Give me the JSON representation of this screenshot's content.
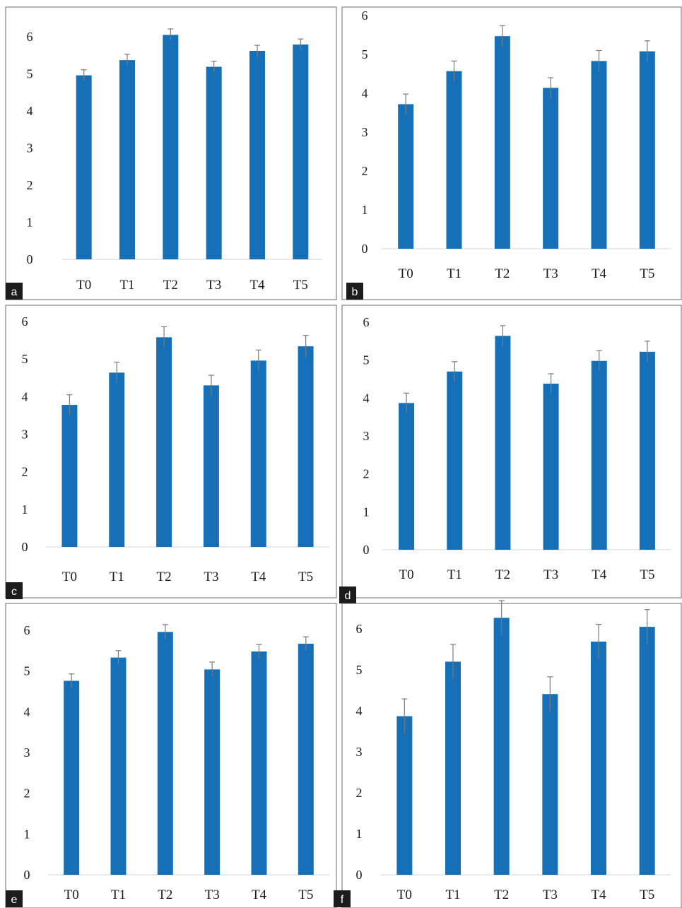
{
  "chart_data": [
    {
      "panel": "a",
      "type": "bar",
      "categories": [
        "T0",
        "T1",
        "T2",
        "T3",
        "T4",
        "T5"
      ],
      "values": [
        4.96,
        5.37,
        6.05,
        5.19,
        5.62,
        5.79
      ],
      "errors": [
        0.15,
        0.16,
        0.16,
        0.15,
        0.15,
        0.15
      ],
      "y_ticks": [
        "0",
        "1",
        "2",
        "3",
        "4",
        "5",
        "6"
      ],
      "ylim": [
        0,
        6.4
      ]
    },
    {
      "panel": "b",
      "type": "bar",
      "categories": [
        "T0",
        "T1",
        "T2",
        "T3",
        "T4",
        "T5"
      ],
      "values": [
        3.72,
        4.57,
        5.47,
        4.14,
        4.83,
        5.08
      ],
      "errors": [
        0.26,
        0.26,
        0.27,
        0.26,
        0.27,
        0.27
      ],
      "y_ticks": [
        "0",
        "1",
        "2",
        "3",
        "4",
        "5",
        "6"
      ],
      "ylim": [
        0,
        6.1
      ]
    },
    {
      "panel": "c",
      "type": "bar",
      "categories": [
        "T0",
        "T1",
        "T2",
        "T3",
        "T4",
        "T5"
      ],
      "values": [
        3.78,
        4.64,
        5.58,
        4.3,
        4.96,
        5.34
      ],
      "errors": [
        0.27,
        0.28,
        0.28,
        0.27,
        0.28,
        0.29
      ],
      "y_ticks": [
        "0",
        "1",
        "2",
        "3",
        "4",
        "5",
        "6"
      ],
      "ylim": [
        0,
        6.1
      ]
    },
    {
      "panel": "d",
      "type": "bar",
      "categories": [
        "T0",
        "T1",
        "T2",
        "T3",
        "T4",
        "T5"
      ],
      "values": [
        3.87,
        4.7,
        5.64,
        4.38,
        4.98,
        5.22
      ],
      "errors": [
        0.26,
        0.26,
        0.27,
        0.26,
        0.27,
        0.28
      ],
      "y_ticks": [
        "0",
        "1",
        "2",
        "3",
        "4",
        "5",
        "6"
      ],
      "ylim": [
        0,
        6.1
      ]
    },
    {
      "panel": "e",
      "type": "bar",
      "categories": [
        "T0",
        "T1",
        "T2",
        "T3",
        "T4",
        "T5"
      ],
      "values": [
        4.76,
        5.33,
        5.96,
        5.04,
        5.48,
        5.67
      ],
      "errors": [
        0.17,
        0.17,
        0.18,
        0.18,
        0.17,
        0.17
      ],
      "y_ticks": [
        "0",
        "1",
        "2",
        "3",
        "4",
        "5",
        "6"
      ],
      "ylim": [
        0,
        6.3
      ]
    },
    {
      "panel": "f",
      "type": "bar",
      "categories": [
        "T0",
        "T1",
        "T2",
        "T3",
        "T4",
        "T5"
      ],
      "values": [
        3.87,
        5.2,
        6.27,
        4.41,
        5.69,
        6.05
      ],
      "errors": [
        0.42,
        0.42,
        0.42,
        0.42,
        0.42,
        0.42
      ],
      "y_ticks": [
        "0",
        "1",
        "2",
        "3",
        "4",
        "5",
        "6"
      ],
      "ylim": [
        0,
        6.6
      ]
    }
  ],
  "bar_color": "#1570b8",
  "error_bar_color": "#7a7a7a"
}
